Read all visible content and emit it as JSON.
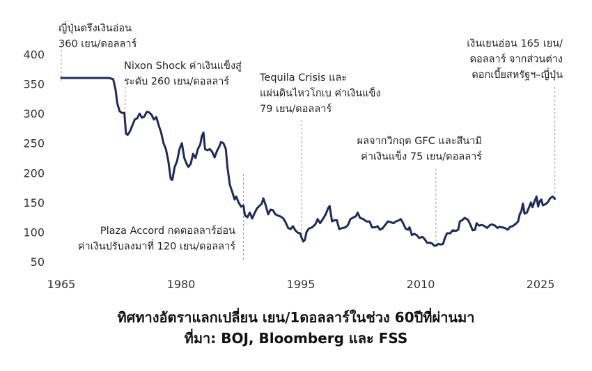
{
  "chart_data": {
    "type": "line",
    "title": "ทิศทางอัตราแลกเปลี่ยน เยน/1ดอลลาร์ในช่วง 60ปีที่ผ่านมา",
    "source": "ที่มา: BOJ, Bloomberg และ FSS",
    "color": "#1f2a5c",
    "xlim": [
      1965,
      2027
    ],
    "xticks": [
      1965,
      1980,
      1995,
      2010,
      2025
    ],
    "ylim": [
      50,
      400
    ],
    "yticks": [
      50,
      100,
      150,
      200,
      250,
      300,
      350,
      400
    ],
    "grid": false,
    "x": [
      1965,
      1966,
      1967,
      1968,
      1969,
      1970,
      1971,
      1971.5,
      1971.8,
      1972.0,
      1972.3,
      1972.6,
      1972.9,
      1973.1,
      1973.3,
      1973.6,
      1973.9,
      1974.2,
      1974.5,
      1974.8,
      1975.1,
      1975.4,
      1975.7,
      1976.0,
      1976.3,
      1976.6,
      1976.9,
      1977.2,
      1977.5,
      1977.8,
      1978.1,
      1978.4,
      1978.7,
      1978.9,
      1979.2,
      1979.5,
      1979.8,
      1980.1,
      1980.4,
      1980.7,
      1980.9,
      1981.2,
      1981.5,
      1981.8,
      1982.1,
      1982.4,
      1982.6,
      1982.8,
      1983.0,
      1983.3,
      1983.6,
      1983.9,
      1984.2,
      1984.5,
      1984.8,
      1985.0,
      1985.3,
      1985.6,
      1985.8,
      1986.1,
      1986.4,
      1986.7,
      1986.9,
      1987.2,
      1987.5,
      1987.8,
      1988.0,
      1988.3,
      1988.6,
      1988.9,
      1989.2,
      1989.5,
      1989.8,
      1990.1,
      1990.3,
      1990.6,
      1990.9,
      1991.2,
      1991.5,
      1991.8,
      1992.1,
      1992.5,
      1992.8,
      1993.1,
      1993.4,
      1993.7,
      1994.0,
      1994.3,
      1994.6,
      1994.9,
      1995.1,
      1995.3,
      1995.5,
      1995.7,
      1996.0,
      1996.4,
      1996.8,
      1997.1,
      1997.4,
      1997.8,
      1998.1,
      1998.4,
      1998.6,
      1998.9,
      1999.2,
      1999.5,
      1999.8,
      2000.2,
      2000.6,
      2000.9,
      2001.2,
      2001.5,
      2001.9,
      2002.1,
      2002.4,
      2002.8,
      2003.2,
      2003.6,
      2003.9,
      2004.3,
      2004.6,
      2004.9,
      2005.2,
      2005.5,
      2005.9,
      2006.2,
      2006.6,
      2006.9,
      2007.3,
      2007.5,
      2007.8,
      2008.1,
      2008.4,
      2008.6,
      2008.9,
      2009.2,
      2009.5,
      2009.8,
      2010.2,
      2010.5,
      2010.8,
      2011.1,
      2011.4,
      2011.7,
      2011.9,
      2012.2,
      2012.5,
      2012.8,
      2013.0,
      2013.3,
      2013.7,
      2014.0,
      2014.4,
      2014.7,
      2014.9,
      2015.2,
      2015.5,
      2015.9,
      2016.2,
      2016.5,
      2016.8,
      2017.0,
      2017.3,
      2017.7,
      2018.0,
      2018.3,
      2018.7,
      2018.9,
      2019.3,
      2019.6,
      2019.9,
      2020.2,
      2020.5,
      2020.9,
      2021.2,
      2021.5,
      2021.9,
      2022.2,
      2022.4,
      2022.6,
      2022.8,
      2023.0,
      2023.3,
      2023.6,
      2023.8,
      2024.0,
      2024.2,
      2024.5,
      2024.7,
      2024.9,
      2025.1,
      2025.3,
      2025.6,
      2025.9,
      2026.2,
      2026.5,
      2026.8
    ],
    "values": [
      360,
      360,
      360,
      360,
      360,
      360,
      360,
      358,
      340,
      318,
      304,
      301,
      301,
      266,
      264,
      270,
      280,
      290,
      292,
      300,
      293,
      295,
      303,
      302,
      298,
      290,
      294,
      280,
      268,
      250,
      240,
      220,
      190,
      188,
      210,
      220,
      240,
      250,
      225,
      215,
      210,
      215,
      232,
      225,
      240,
      248,
      262,
      268,
      240,
      238,
      240,
      235,
      226,
      237,
      245,
      252,
      250,
      240,
      210,
      180,
      168,
      155,
      160,
      150,
      143,
      145,
      128,
      125,
      133,
      123,
      132,
      140,
      144,
      148,
      157,
      145,
      130,
      138,
      137,
      130,
      128,
      126,
      123,
      116,
      107,
      105,
      110,
      103,
      99,
      98,
      90,
      84,
      87,
      100,
      106,
      108,
      113,
      122,
      115,
      123,
      130,
      140,
      144,
      118,
      120,
      120,
      105,
      107,
      108,
      112,
      122,
      124,
      127,
      133,
      124,
      122,
      118,
      118,
      108,
      108,
      110,
      104,
      106,
      111,
      118,
      117,
      115,
      118,
      120,
      122,
      115,
      106,
      104,
      108,
      95,
      97,
      95,
      90,
      92,
      88,
      82,
      82,
      81,
      77,
      77,
      80,
      79,
      80,
      89,
      98,
      98,
      103,
      102,
      104,
      118,
      120,
      124,
      121,
      113,
      103,
      104,
      115,
      111,
      112,
      110,
      107,
      112,
      113,
      111,
      107,
      109,
      108,
      107,
      104,
      109,
      110,
      114,
      118,
      130,
      135,
      148,
      131,
      133,
      143,
      150,
      142,
      150,
      160,
      143,
      152,
      155,
      145,
      147,
      150,
      157,
      160,
      156
    ],
    "annotations": [
      {
        "x": 1965,
        "lines": [
          "ญี่ปุ่นตรึงเงินอ่อน",
          "360 เยน/ดอลลาร์"
        ]
      },
      {
        "x": 1973,
        "lines": [
          "Nixon Shock ค่าเงินแข็งสู่",
          "ระดับ 260 เยน/ดอลลาร์"
        ]
      },
      {
        "x": 1995.1,
        "lines": [
          "Tequila Crisis และ",
          "แผ่นดินไหวโกเบ ค่าเงินแข็ง",
          "79 เยน/ดอลลาร์"
        ]
      },
      {
        "x": 2011.9,
        "lines": [
          "ผลจากวิกฤต GFC และสึนามิ",
          "ค่าเงินแข็ง 75 เยน/ดอลลาร์"
        ]
      },
      {
        "x": 1987.8,
        "lines": [
          "Plaza Accord กดดอลลาร์อ่อน",
          "ค่าเงินปรับลงมาที่ 120 เยน/ดอลลาร์"
        ]
      },
      {
        "x": 2026.8,
        "lines": [
          "เงินเยนอ่อน 165 เยน/",
          "ดอลลาร์ จากส่วนต่าง",
          "ดอกเบี้ยสหรัฐฯ–ญี่ปุ่น"
        ]
      }
    ]
  }
}
